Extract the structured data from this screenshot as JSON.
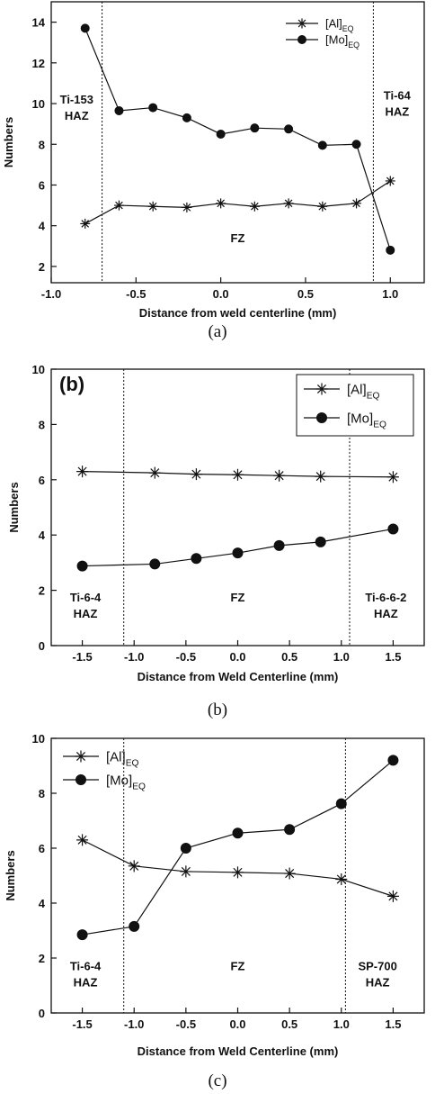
{
  "captions": [
    "(a)",
    "(b)",
    "(c)"
  ],
  "chart_data": [
    {
      "type": "line",
      "panel_letter": "",
      "xlabel": "Distance from weld centerline (mm)",
      "ylabel": "Numbers",
      "xlim": [
        -1.0,
        1.2
      ],
      "ylim": [
        1.2,
        15.0
      ],
      "xticks": [
        -1.0,
        -0.5,
        0.0,
        0.5,
        1.0
      ],
      "xtick_labels": [
        "-1.0",
        "-0.5",
        "0.0",
        "0.5",
        "1.0"
      ],
      "yticks": [
        2,
        4,
        6,
        8,
        10,
        12,
        14
      ],
      "ytick_labels": [
        "2",
        "4",
        "6",
        "8",
        "10",
        "12",
        "14"
      ],
      "boundaries": [
        -0.7,
        0.9
      ],
      "regions": [
        {
          "lines": [
            "Ti-153",
            "HAZ"
          ],
          "x": -0.85,
          "y": 10.0,
          "anchor": "middle"
        },
        {
          "lines": [
            "FZ"
          ],
          "x": 0.1,
          "y": 3.2,
          "anchor": "middle"
        },
        {
          "lines": [
            "Ti-64",
            "HAZ"
          ],
          "x": 1.04,
          "y": 10.2,
          "anchor": "middle"
        }
      ],
      "legend": {
        "position": "top-right",
        "items": [
          {
            "main": "[Al]",
            "sub": "EQ"
          },
          {
            "main": "[Mo]",
            "sub": "EQ"
          }
        ]
      },
      "grid": false,
      "series": [
        {
          "name": "[Al]EQ",
          "marker": "star",
          "x": [
            -0.8,
            -0.6,
            -0.4,
            -0.2,
            0.0,
            0.2,
            0.4,
            0.6,
            0.8,
            1.0
          ],
          "y": [
            4.1,
            5.0,
            4.95,
            4.9,
            5.1,
            4.95,
            5.1,
            4.95,
            5.1,
            6.2
          ]
        },
        {
          "name": "[Mo]EQ",
          "marker": "circle",
          "x": [
            -0.8,
            -0.6,
            -0.4,
            -0.2,
            0.0,
            0.2,
            0.4,
            0.6,
            0.8,
            1.0
          ],
          "y": [
            13.7,
            9.65,
            9.8,
            9.3,
            8.5,
            8.8,
            8.75,
            7.95,
            8.0,
            2.8
          ]
        }
      ]
    },
    {
      "type": "line",
      "panel_letter": "(b)",
      "xlabel": "Distance from Weld Centerline (mm)",
      "ylabel": "Numbers",
      "xlim": [
        -1.8,
        1.8
      ],
      "ylim": [
        0,
        10
      ],
      "xticks": [
        -1.5,
        -1.0,
        -0.5,
        0.0,
        0.5,
        1.0,
        1.5
      ],
      "xtick_labels": [
        "-1.5",
        "-1.0",
        "-0.5",
        "0.0",
        "0.5",
        "1.0",
        "1.5"
      ],
      "yticks": [
        0,
        2,
        4,
        6,
        8,
        10
      ],
      "ytick_labels": [
        "0",
        "2",
        "4",
        "6",
        "8",
        "10"
      ],
      "boundaries": [
        -1.1,
        1.08
      ],
      "regions": [
        {
          "lines": [
            "Ti-6-4",
            "HAZ"
          ],
          "x": -1.47,
          "y": 1.6,
          "anchor": "middle"
        },
        {
          "lines": [
            "FZ"
          ],
          "x": 0.0,
          "y": 1.6,
          "anchor": "middle"
        },
        {
          "lines": [
            "Ti-6-6-2",
            "HAZ"
          ],
          "x": 1.43,
          "y": 1.6,
          "anchor": "middle"
        }
      ],
      "legend": {
        "position": "top-right",
        "items": [
          {
            "main": "[Al]",
            "sub": "EQ"
          },
          {
            "main": "[Mo]",
            "sub": "EQ"
          }
        ]
      },
      "grid": false,
      "series": [
        {
          "name": "[Al]EQ",
          "marker": "star",
          "x": [
            -1.5,
            -0.8,
            -0.4,
            0.0,
            0.4,
            0.8,
            1.5
          ],
          "y": [
            6.3,
            6.25,
            6.2,
            6.18,
            6.15,
            6.12,
            6.1
          ]
        },
        {
          "name": "[Mo]EQ",
          "marker": "circle",
          "x": [
            -1.5,
            -0.8,
            -0.4,
            0.0,
            0.4,
            0.8,
            1.5
          ],
          "y": [
            2.88,
            2.95,
            3.15,
            3.35,
            3.62,
            3.75,
            4.22
          ]
        }
      ]
    },
    {
      "type": "line",
      "panel_letter": "",
      "xlabel": "Distance from Weld Centerline (mm)",
      "ylabel": "Numbers",
      "xlim": [
        -1.8,
        1.8
      ],
      "ylim": [
        0,
        10
      ],
      "xticks": [
        -1.5,
        -1.0,
        -0.5,
        0.0,
        0.5,
        1.0,
        1.5
      ],
      "xtick_labels": [
        "-1.5",
        "-1.0",
        "-0.5",
        "0.0",
        "0.5",
        "1.0",
        "1.5"
      ],
      "yticks": [
        0,
        2,
        4,
        6,
        8,
        10
      ],
      "ytick_labels": [
        "0",
        "2",
        "4",
        "6",
        "8",
        "10"
      ],
      "boundaries": [
        -1.1,
        1.04
      ],
      "regions": [
        {
          "lines": [
            "Ti-6-4",
            "HAZ"
          ],
          "x": -1.47,
          "y": 1.55,
          "anchor": "middle"
        },
        {
          "lines": [
            "FZ"
          ],
          "x": 0.0,
          "y": 1.55,
          "anchor": "middle"
        },
        {
          "lines": [
            "SP-700",
            "HAZ"
          ],
          "x": 1.35,
          "y": 1.55,
          "anchor": "middle"
        }
      ],
      "legend": {
        "position": "top-left",
        "items": [
          {
            "main": "[Al]",
            "sub": "EQ"
          },
          {
            "main": "[Mo]",
            "sub": "EQ"
          }
        ]
      },
      "grid": false,
      "series": [
        {
          "name": "[Al]EQ",
          "marker": "star",
          "x": [
            -1.5,
            -1.0,
            -0.5,
            0.0,
            0.5,
            1.0,
            1.5
          ],
          "y": [
            6.3,
            5.35,
            5.15,
            5.12,
            5.08,
            4.87,
            4.25
          ]
        },
        {
          "name": "[Mo]EQ",
          "marker": "circle",
          "x": [
            -1.5,
            -1.0,
            -0.5,
            0.0,
            0.5,
            1.0,
            1.5
          ],
          "y": [
            2.85,
            3.15,
            6.0,
            6.55,
            6.68,
            7.62,
            9.2
          ]
        }
      ]
    }
  ]
}
